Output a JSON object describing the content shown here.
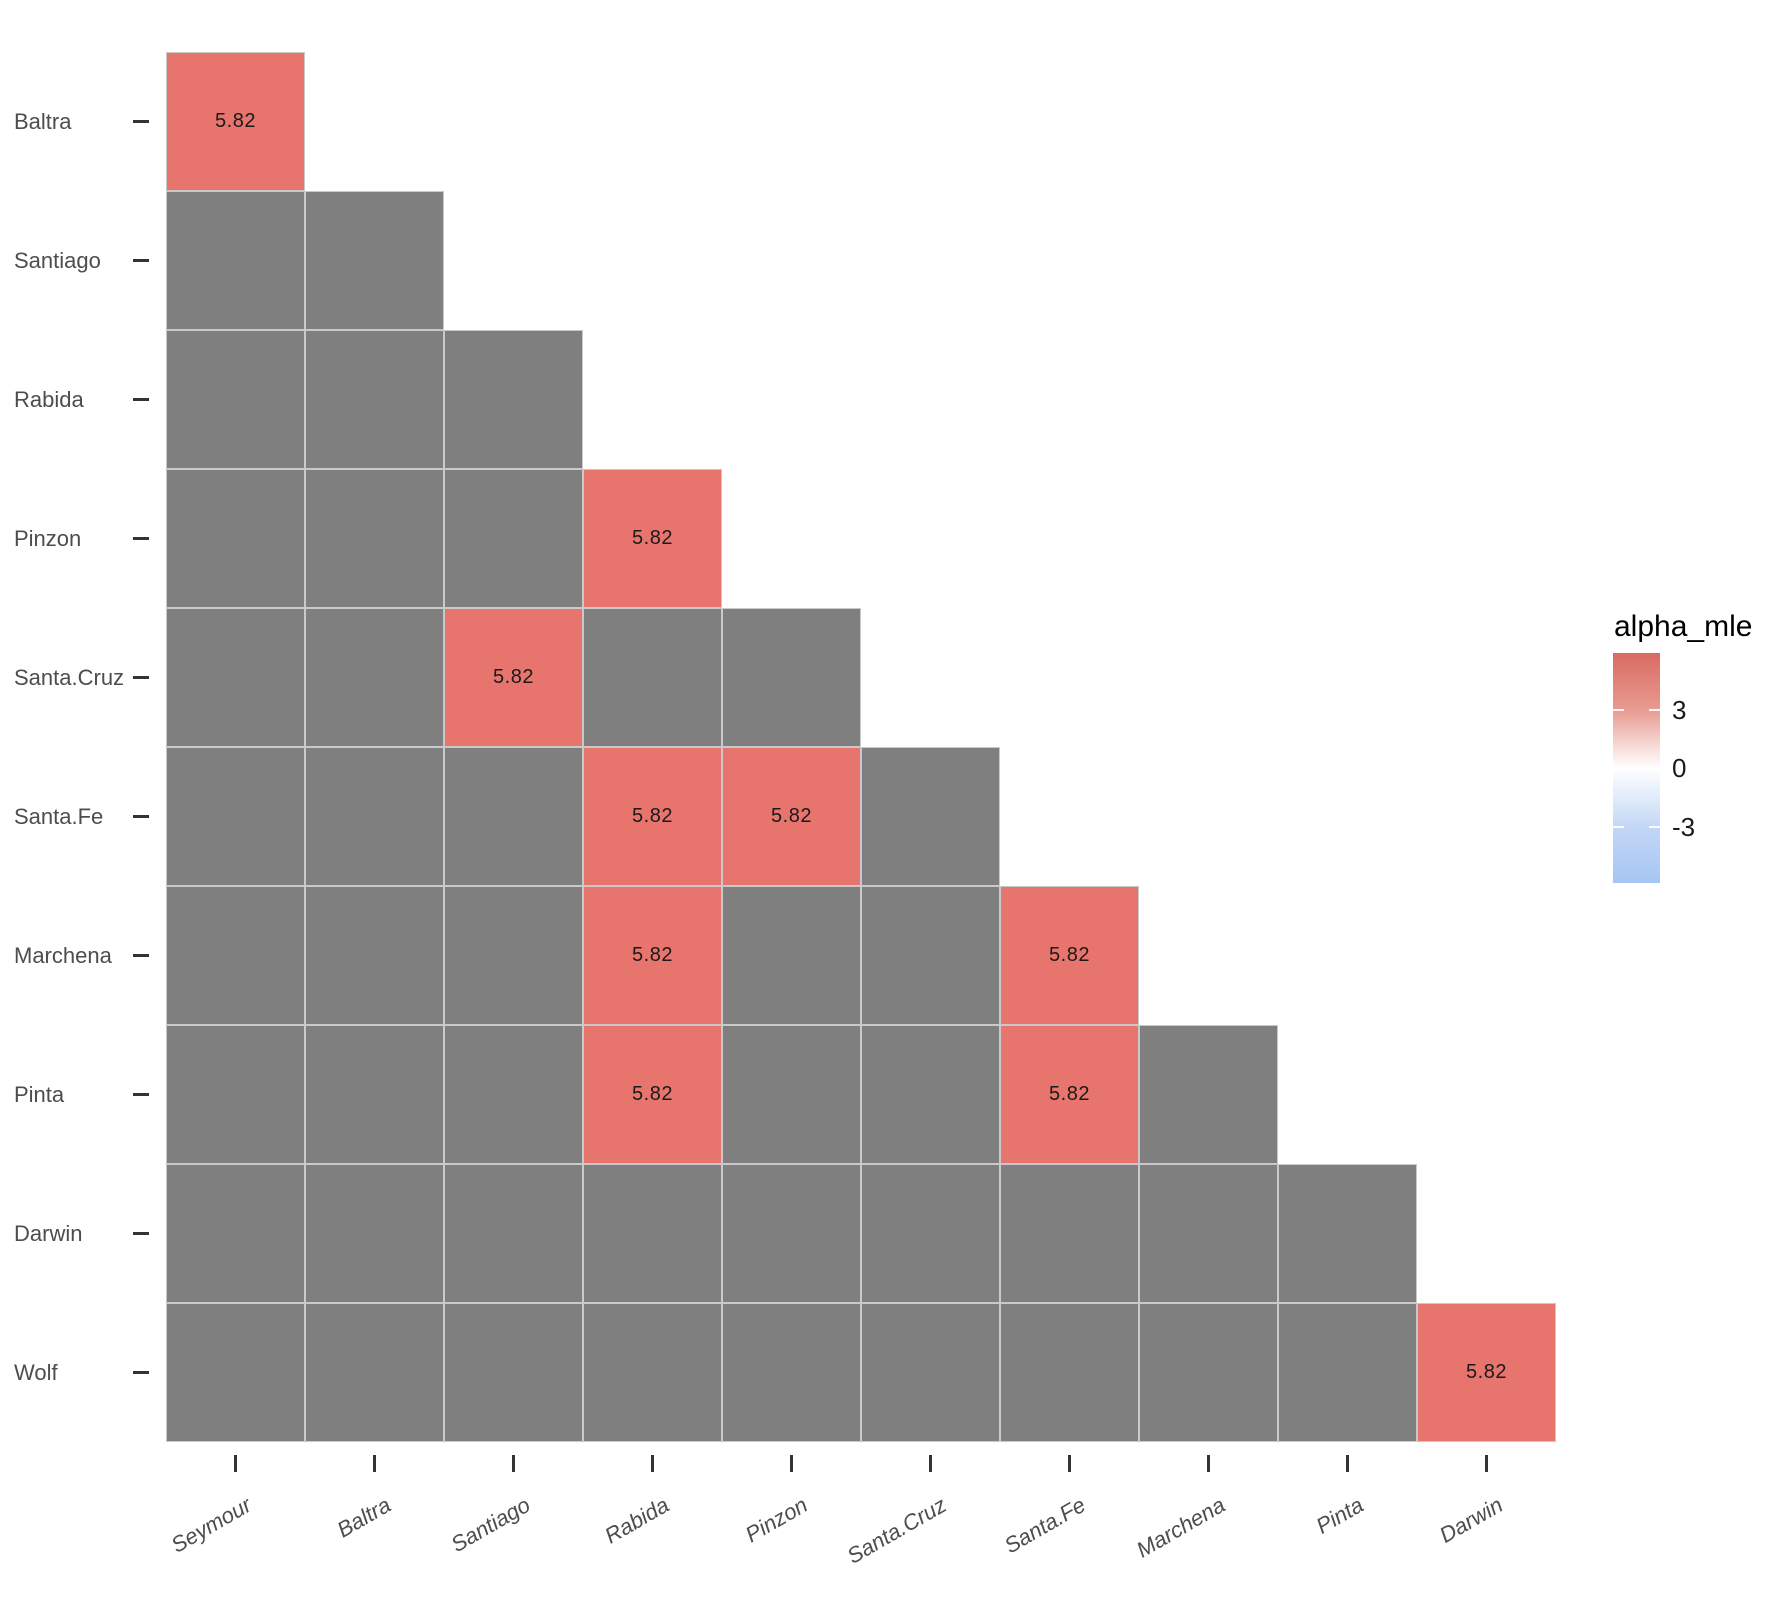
{
  "chart_data": {
    "type": "heatmap",
    "title": "",
    "shape": "lower_triangle_staircase",
    "x_categories": [
      "Seymour",
      "Baltra",
      "Santiago",
      "Rabida",
      "Pinzon",
      "Santa.Cruz",
      "Santa.Fe",
      "Marchena",
      "Pinta",
      "Darwin"
    ],
    "y_categories": [
      "Baltra",
      "Santiago",
      "Rabida",
      "Pinzon",
      "Santa.Cruz",
      "Santa.Fe",
      "Marchena",
      "Pinta",
      "Darwin",
      "Wolf"
    ],
    "matrix": [
      [
        5.82
      ],
      [
        null,
        null
      ],
      [
        null,
        null,
        null
      ],
      [
        null,
        null,
        null,
        5.82
      ],
      [
        null,
        null,
        5.82,
        null,
        null
      ],
      [
        null,
        null,
        null,
        5.82,
        5.82,
        null
      ],
      [
        null,
        null,
        null,
        5.82,
        null,
        null,
        5.82
      ],
      [
        null,
        null,
        null,
        5.82,
        null,
        null,
        5.82,
        null
      ],
      [
        null,
        null,
        null,
        null,
        null,
        null,
        null,
        null,
        null
      ],
      [
        null,
        null,
        null,
        null,
        null,
        null,
        null,
        null,
        null,
        5.82
      ]
    ],
    "cell_value_label": "5.82",
    "na_cell_color": "#7f7f7f",
    "value_cell_color": "#e8746e",
    "cell_border_color": "#c9c9c9",
    "axis_text_color": "#4d4d4d",
    "grid": false,
    "legend_position": "right"
  },
  "legend": {
    "title": "alpha_mle",
    "tick_labels": [
      "3",
      "0",
      "-3"
    ],
    "gradient_top_color": "#d96a60",
    "gradient_mid_color": "#ffffff",
    "gradient_bottom_color": "#a5c6f3"
  }
}
